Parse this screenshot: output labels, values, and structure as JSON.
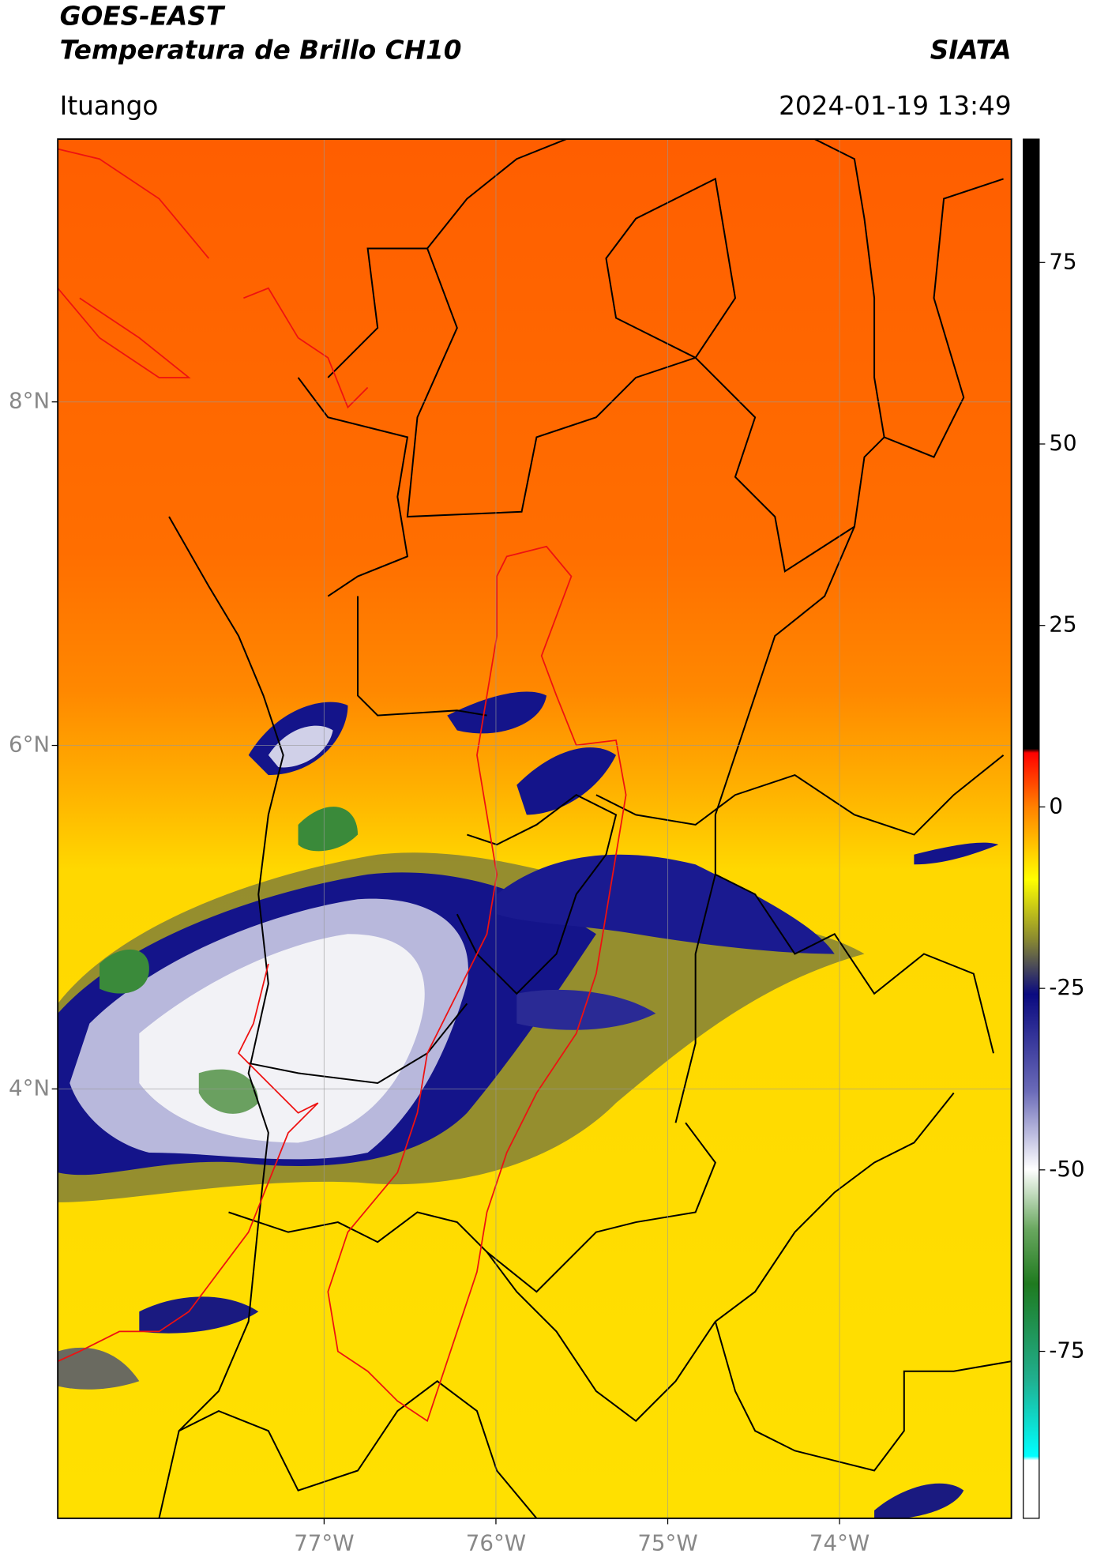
{
  "header": {
    "title": "GOES-EAST",
    "subtitle": "Temperatura de Brillo CH10",
    "source": "SIATA",
    "location": "Ituango",
    "timestamp": "2024-01-19 13:49"
  },
  "map": {
    "xlim": [
      -78.55,
      -73.0
    ],
    "ylim": [
      1.5,
      9.53
    ],
    "xticks": [
      {
        "value": -77,
        "label": "77°W"
      },
      {
        "value": -76,
        "label": "76°W"
      },
      {
        "value": -75,
        "label": "75°W"
      },
      {
        "value": -74,
        "label": "74°W"
      }
    ],
    "yticks": [
      {
        "value": 8,
        "label": "8°N"
      },
      {
        "value": 6,
        "label": "6°N"
      },
      {
        "value": 4,
        "label": "4°N"
      }
    ],
    "grid": true,
    "colorbar": {
      "clim": [
        -98,
        92
      ],
      "ticks": [
        75,
        50,
        25,
        0,
        -25,
        -50,
        -75
      ]
    }
  }
}
